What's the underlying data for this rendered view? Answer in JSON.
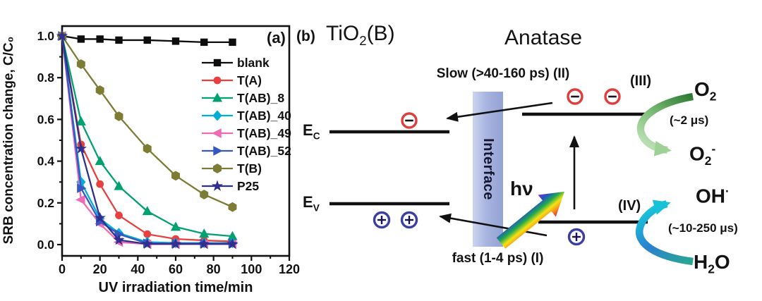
{
  "panel_a": {
    "corner_label": "(a)"
  },
  "chart_data": {
    "type": "line",
    "title": "",
    "xlabel": "UV irradiation time/min",
    "ylabel": "SRB concentration change, C/C₀",
    "xlim": [
      0,
      120
    ],
    "ylim": [
      -0.05,
      1.05
    ],
    "x_ticks": [
      0,
      20,
      40,
      60,
      80,
      100,
      120
    ],
    "x_minor_ticks": [
      10,
      30,
      50,
      70,
      90,
      110
    ],
    "y_ticks": [
      0.0,
      0.2,
      0.4,
      0.6,
      0.8,
      1.0
    ],
    "y_minor_ticks": [
      0.1,
      0.3,
      0.5,
      0.7,
      0.9
    ],
    "grid": false,
    "legend_position": "upper right",
    "x": [
      0,
      10,
      20,
      30,
      45,
      60,
      75,
      90
    ],
    "series": [
      {
        "name": "blank",
        "marker": "square",
        "color": "#0d0d0d",
        "values": [
          1.0,
          0.985,
          0.985,
          0.98,
          0.98,
          0.975,
          0.97,
          0.97
        ]
      },
      {
        "name": "T(A)",
        "marker": "circle",
        "color": "#e8403f",
        "values": [
          1.0,
          0.48,
          0.29,
          0.14,
          0.05,
          0.027,
          0.02,
          0.015
        ]
      },
      {
        "name": "T(AB)_8",
        "marker": "triangle-up",
        "color": "#00a170",
        "values": [
          1.0,
          0.59,
          0.4,
          0.28,
          0.16,
          0.085,
          0.052,
          0.04
        ]
      },
      {
        "name": "T(AB)_40",
        "marker": "diamond",
        "color": "#00aed8",
        "values": [
          1.0,
          0.3,
          0.125,
          0.055,
          0.012,
          0.008,
          0.008,
          0.008
        ]
      },
      {
        "name": "T(AB)_49",
        "marker": "triangle-left",
        "color": "#ef6bb5",
        "values": [
          1.0,
          0.215,
          0.1,
          0.012,
          0.002,
          0.002,
          0.002,
          0.002
        ]
      },
      {
        "name": "T(AB)_52",
        "marker": "triangle-right",
        "color": "#3a57c0",
        "values": [
          1.0,
          0.27,
          0.11,
          0.05,
          0.006,
          0.005,
          0.005,
          0.005
        ]
      },
      {
        "name": "T(B)",
        "marker": "hexagon",
        "color": "#7c7c35",
        "values": [
          1.0,
          0.865,
          0.74,
          0.615,
          0.46,
          0.33,
          0.24,
          0.18
        ]
      },
      {
        "name": "P25",
        "marker": "star",
        "color": "#2f2f8d",
        "values": [
          1.0,
          0.46,
          0.128,
          0.022,
          0.003,
          0.003,
          0.003,
          0.003
        ]
      }
    ]
  },
  "panel_b": {
    "corner_label": "(b)",
    "tio2b": {
      "pre": "TiO",
      "sub": "2",
      "post": "(B)"
    },
    "anatase_title": "Anatase",
    "slow_label": "Slow (>40-160 ps) (II)",
    "fast_label": "fast (1-4 ps) (I)",
    "interface_label": "Interface",
    "ec": {
      "main": "E",
      "sub": "C"
    },
    "ev": {
      "main": "E",
      "sub": "V"
    },
    "hv_label": "hν",
    "step_iii": "(III)",
    "step_iv": "(IV)",
    "o2": {
      "pre": "O",
      "sub": "2"
    },
    "o2_time": "(~2 μs)",
    "o2_minus": {
      "pre": "O",
      "sub": "2",
      "sup": "-"
    },
    "oh": {
      "pre": "OH",
      "sup": "·"
    },
    "oh_time": "(~10-250 μs)",
    "h2o": {
      "pre": "H",
      "sub": "2",
      "post": "O"
    },
    "colors": {
      "electron_ring": "#e23b3b",
      "hole_ring": "#3c3f9f",
      "interface_bar": "#aab6e0",
      "o2_arrow_green": "#4b9d4e",
      "h2o_arrow_cyan": "#1ab5c8"
    }
  }
}
